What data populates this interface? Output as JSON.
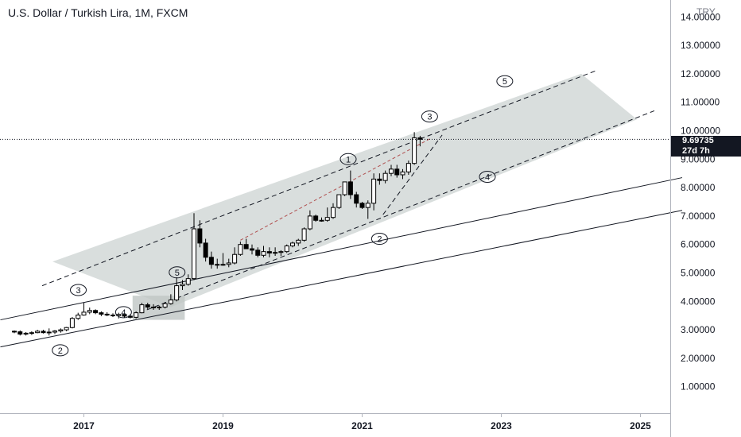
{
  "title": "U.S. Dollar / Turkish Lira, 1M, FXCM",
  "currency": "TRY",
  "price_label": {
    "value": "9.69735",
    "countdown": "27d 7h"
  },
  "colors": {
    "up": "#ffffff",
    "down": "#000000",
    "wick": "#000000",
    "channel_fill": "#cfd6d4",
    "axis_text": "#131722"
  },
  "chart_data": {
    "type": "candlestick",
    "ylim": [
      0.6,
      14.6
    ],
    "y_ticks": [
      "1.00000",
      "2.00000",
      "3.00000",
      "4.00000",
      "5.00000",
      "6.00000",
      "7.00000",
      "8.00000",
      "9.00000",
      "10.00000",
      "11.00000",
      "12.00000",
      "13.00000",
      "14.00000"
    ],
    "x_ticks": [
      "2017",
      "2019",
      "2021",
      "2023",
      "2025"
    ],
    "x_tick_years": [
      2017,
      2019,
      2021,
      2023,
      2025
    ],
    "last_price": 9.69735,
    "candles": [
      [
        2016.0,
        2.95,
        2.98,
        2.88,
        2.93
      ],
      [
        2016.083,
        2.93,
        2.98,
        2.8,
        2.85
      ],
      [
        2016.167,
        2.85,
        2.92,
        2.8,
        2.88
      ],
      [
        2016.25,
        2.88,
        2.95,
        2.82,
        2.9
      ],
      [
        2016.333,
        2.9,
        3.0,
        2.88,
        2.95
      ],
      [
        2016.417,
        2.95,
        3.0,
        2.87,
        2.9
      ],
      [
        2016.5,
        2.9,
        3.05,
        2.8,
        2.92
      ],
      [
        2016.583,
        2.92,
        2.99,
        2.85,
        2.96
      ],
      [
        2016.667,
        2.96,
        3.05,
        2.9,
        3.0
      ],
      [
        2016.75,
        3.0,
        3.1,
        2.95,
        3.08
      ],
      [
        2016.833,
        3.08,
        3.45,
        3.05,
        3.4
      ],
      [
        2016.917,
        3.4,
        3.6,
        3.35,
        3.52
      ],
      [
        2017.0,
        3.52,
        3.95,
        3.5,
        3.62
      ],
      [
        2017.083,
        3.62,
        3.78,
        3.55,
        3.68
      ],
      [
        2017.167,
        3.68,
        3.72,
        3.55,
        3.6
      ],
      [
        2017.25,
        3.6,
        3.65,
        3.48,
        3.55
      ],
      [
        2017.333,
        3.55,
        3.62,
        3.48,
        3.52
      ],
      [
        2017.417,
        3.52,
        3.58,
        3.45,
        3.5
      ],
      [
        2017.5,
        3.5,
        3.6,
        3.4,
        3.54
      ],
      [
        2017.583,
        3.54,
        3.58,
        3.42,
        3.48
      ],
      [
        2017.667,
        3.48,
        3.55,
        3.4,
        3.44
      ],
      [
        2017.75,
        3.44,
        3.65,
        3.4,
        3.6
      ],
      [
        2017.833,
        3.6,
        3.95,
        3.58,
        3.88
      ],
      [
        2017.917,
        3.88,
        3.95,
        3.72,
        3.8
      ],
      [
        2018.0,
        3.8,
        3.9,
        3.7,
        3.78
      ],
      [
        2018.083,
        3.78,
        3.85,
        3.7,
        3.8
      ],
      [
        2018.167,
        3.8,
        3.98,
        3.75,
        3.92
      ],
      [
        2018.25,
        3.92,
        4.25,
        3.88,
        4.05
      ],
      [
        2018.333,
        4.05,
        4.85,
        4.0,
        4.55
      ],
      [
        2018.417,
        4.55,
        4.75,
        4.4,
        4.6
      ],
      [
        2018.5,
        4.6,
        4.95,
        4.55,
        4.8
      ],
      [
        2018.583,
        4.8,
        7.1,
        4.75,
        6.55
      ],
      [
        2018.667,
        6.55,
        6.85,
        5.9,
        6.05
      ],
      [
        2018.75,
        6.05,
        6.2,
        5.4,
        5.55
      ],
      [
        2018.833,
        5.55,
        5.75,
        5.15,
        5.3
      ],
      [
        2018.917,
        5.3,
        5.5,
        5.15,
        5.3
      ],
      [
        2019.0,
        5.3,
        5.7,
        5.25,
        5.3
      ],
      [
        2019.083,
        5.3,
        5.5,
        5.2,
        5.35
      ],
      [
        2019.167,
        5.35,
        5.9,
        5.3,
        5.65
      ],
      [
        2019.25,
        5.65,
        6.1,
        5.6,
        6.0
      ],
      [
        2019.333,
        6.0,
        6.2,
        5.85,
        5.85
      ],
      [
        2019.417,
        5.85,
        6.0,
        5.65,
        5.8
      ],
      [
        2019.5,
        5.8,
        5.9,
        5.55,
        5.62
      ],
      [
        2019.583,
        5.62,
        5.95,
        5.55,
        5.75
      ],
      [
        2019.667,
        5.75,
        5.9,
        5.55,
        5.7
      ],
      [
        2019.75,
        5.7,
        5.9,
        5.6,
        5.72
      ],
      [
        2019.833,
        5.72,
        5.8,
        5.6,
        5.75
      ],
      [
        2019.917,
        5.75,
        6.0,
        5.7,
        5.95
      ],
      [
        2020.0,
        5.95,
        6.1,
        5.9,
        6.05
      ],
      [
        2020.083,
        6.05,
        6.2,
        5.95,
        6.15
      ],
      [
        2020.167,
        6.15,
        6.6,
        6.1,
        6.55
      ],
      [
        2020.25,
        6.55,
        7.2,
        6.5,
        7.0
      ],
      [
        2020.333,
        7.0,
        7.05,
        6.8,
        6.85
      ],
      [
        2020.417,
        6.85,
        6.95,
        6.8,
        6.85
      ],
      [
        2020.5,
        6.85,
        7.3,
        6.8,
        6.95
      ],
      [
        2020.583,
        6.95,
        7.45,
        6.9,
        7.3
      ],
      [
        2020.667,
        7.3,
        7.75,
        7.25,
        7.75
      ],
      [
        2020.75,
        7.75,
        8.2,
        7.7,
        8.2
      ],
      [
        2020.833,
        8.2,
        8.6,
        7.6,
        7.75
      ],
      [
        2020.917,
        7.75,
        7.85,
        7.3,
        7.45
      ],
      [
        2021.0,
        7.45,
        7.5,
        7.25,
        7.3
      ],
      [
        2021.083,
        7.3,
        7.55,
        6.9,
        7.45
      ],
      [
        2021.167,
        7.45,
        8.5,
        7.2,
        8.3
      ],
      [
        2021.25,
        8.3,
        8.5,
        8.1,
        8.25
      ],
      [
        2021.333,
        8.25,
        8.6,
        8.15,
        8.5
      ],
      [
        2021.417,
        8.5,
        8.8,
        8.4,
        8.65
      ],
      [
        2021.5,
        8.65,
        8.8,
        8.35,
        8.45
      ],
      [
        2021.583,
        8.45,
        8.65,
        8.3,
        8.55
      ],
      [
        2021.667,
        8.55,
        8.95,
        8.45,
        8.85
      ],
      [
        2021.75,
        8.85,
        9.95,
        8.8,
        9.75
      ],
      [
        2021.833,
        9.75,
        9.82,
        9.45,
        9.69735
      ]
    ],
    "lines": [
      {
        "style": "solid",
        "points": [
          [
            2015.8,
            3.35
          ],
          [
            2025.6,
            8.35
          ]
        ]
      },
      {
        "style": "solid",
        "points": [
          [
            2015.8,
            2.4
          ],
          [
            2025.6,
            7.2
          ]
        ]
      },
      {
        "style": "dashed",
        "points": [
          [
            2016.4,
            4.55
          ],
          [
            2024.35,
            12.1
          ]
        ]
      },
      {
        "style": "dashed",
        "points": [
          [
            2017.8,
            3.6
          ],
          [
            2025.2,
            10.7
          ]
        ]
      },
      {
        "style": "dashed-red",
        "points": [
          [
            2019.25,
            6.15
          ],
          [
            2022.0,
            9.75
          ]
        ]
      },
      {
        "style": "dashed",
        "points": [
          [
            2021.3,
            7.05
          ],
          [
            2022.15,
            9.85
          ]
        ]
      }
    ],
    "channel": [
      [
        2016.55,
        5.4
      ],
      [
        2024.15,
        12.0
      ],
      [
        2024.95,
        10.4
      ],
      [
        2018.25,
        3.8
      ]
    ],
    "shade_box": [
      2017.7,
      2018.45,
      3.35,
      4.2
    ],
    "wave_labels": [
      {
        "t": "2",
        "x": 2016.66,
        "y": 2.28
      },
      {
        "t": "3",
        "x": 2016.92,
        "y": 4.4
      },
      {
        "t": "4",
        "x": 2017.57,
        "y": 3.62
      },
      {
        "t": "5",
        "x": 2018.34,
        "y": 5.02
      },
      {
        "t": "1",
        "x": 2020.8,
        "y": 9.0
      },
      {
        "t": "2",
        "x": 2021.25,
        "y": 6.2
      },
      {
        "t": "3",
        "x": 2021.97,
        "y": 10.5
      },
      {
        "t": "4",
        "x": 2022.8,
        "y": 8.38
      },
      {
        "t": "5",
        "x": 2023.05,
        "y": 11.74
      }
    ]
  }
}
